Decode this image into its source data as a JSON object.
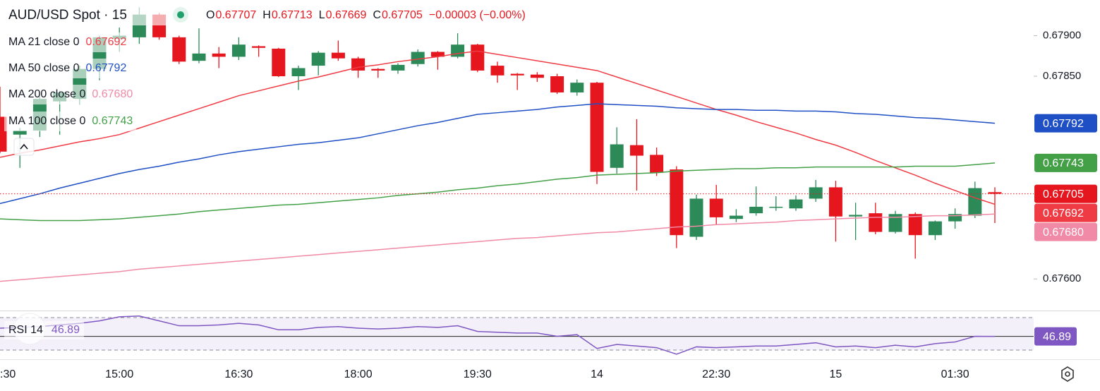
{
  "chart_data": [
    {
      "type": "candlestick",
      "title": "AUD/USD Spot · 15",
      "ohlc_labels": [
        "O",
        "H",
        "L",
        "C"
      ],
      "change": "−0.00003 (−0.00%)",
      "categories": [
        ":30",
        null,
        null,
        null,
        null,
        null,
        "15:00",
        null,
        null,
        null,
        null,
        null,
        "16:30",
        null,
        null,
        null,
        null,
        null,
        "18:00",
        null,
        null,
        null,
        null,
        null,
        "19:30",
        null,
        null,
        null,
        null,
        null,
        "14",
        null,
        null,
        null,
        null,
        null,
        "22:30",
        null,
        null,
        null,
        null,
        null,
        "15",
        null,
        null,
        null,
        null,
        null,
        "01:30",
        null,
        null
      ],
      "open": [
        0.678,
        0.67778,
        0.67783,
        0.67819,
        0.67822,
        0.67859,
        0.67896,
        0.67898,
        0.67926,
        0.67898,
        0.67869,
        0.67878,
        0.67874,
        0.67887,
        0.67884,
        0.6785,
        0.67863,
        0.67879,
        0.67872,
        0.67859,
        0.67857,
        0.67865,
        0.6788,
        0.67874,
        0.67889,
        0.67863,
        0.67853,
        0.67852,
        0.6785,
        0.6783,
        0.67842,
        0.67737,
        0.67765,
        0.67753,
        0.67735,
        0.67652,
        0.67699,
        0.67674,
        0.67681,
        0.67688,
        0.67687,
        0.67699,
        0.67713,
        0.67677,
        0.67681,
        0.67658,
        0.6768,
        0.67654,
        0.67671,
        0.67678,
        0.67707
      ],
      "high": [
        0.67837,
        0.67786,
        0.67825,
        0.67832,
        0.67863,
        0.679,
        0.6791,
        0.67935,
        0.67928,
        0.679,
        0.67909,
        0.67886,
        0.67898,
        0.67888,
        0.67885,
        0.67863,
        0.67881,
        0.67894,
        0.67874,
        0.6786,
        0.67866,
        0.67883,
        0.67881,
        0.67903,
        0.6789,
        0.67868,
        0.67854,
        0.67855,
        0.67853,
        0.67846,
        0.67843,
        0.67787,
        0.67797,
        0.67762,
        0.67739,
        0.67704,
        0.67716,
        0.67686,
        0.67714,
        0.67702,
        0.67703,
        0.67722,
        0.67721,
        0.67694,
        0.67694,
        0.67684,
        0.67682,
        0.67672,
        0.67687,
        0.6772,
        0.67713
      ],
      "low": [
        0.67755,
        0.67737,
        0.67775,
        0.67778,
        0.67815,
        0.67845,
        0.6788,
        0.6789,
        0.67895,
        0.67865,
        0.67866,
        0.6786,
        0.6787,
        0.67874,
        0.67849,
        0.67833,
        0.67851,
        0.67869,
        0.67848,
        0.67848,
        0.67853,
        0.67862,
        0.67858,
        0.67872,
        0.67855,
        0.67842,
        0.67833,
        0.67843,
        0.67828,
        0.67826,
        0.67717,
        0.6773,
        0.67709,
        0.67727,
        0.67638,
        0.67648,
        0.67667,
        0.6767,
        0.67678,
        0.67684,
        0.67684,
        0.67695,
        0.67646,
        0.67648,
        0.67655,
        0.67656,
        0.67625,
        0.67648,
        0.67662,
        0.67675,
        0.67669
      ],
      "close": [
        0.67757,
        0.67783,
        0.67822,
        0.6783,
        0.67859,
        0.67898,
        0.679,
        0.67926,
        0.67898,
        0.67868,
        0.67878,
        0.67874,
        0.67889,
        0.67885,
        0.6785,
        0.6786,
        0.67879,
        0.67872,
        0.67857,
        0.67857,
        0.67864,
        0.6788,
        0.67874,
        0.67889,
        0.67857,
        0.67851,
        0.67851,
        0.67848,
        0.6783,
        0.67842,
        0.67732,
        0.67766,
        0.67752,
        0.67731,
        0.67654,
        0.67699,
        0.67676,
        0.67678,
        0.67689,
        0.67689,
        0.67698,
        0.67713,
        0.67677,
        0.67679,
        0.67658,
        0.6768,
        0.67654,
        0.67671,
        0.6768,
        0.67712,
        0.67705
      ],
      "up_color": "#2b8a57",
      "down_color": "#e5161d",
      "series": [
        {
          "name": "MA 21 close 0",
          "color": "#ef3b44",
          "values": [
            0.6775,
            0.67755,
            0.67759,
            0.67764,
            0.67769,
            0.67773,
            0.67778,
            0.67786,
            0.67794,
            0.67802,
            0.6781,
            0.67818,
            0.67826,
            0.67832,
            0.67838,
            0.67844,
            0.67849,
            0.67855,
            0.67861,
            0.67864,
            0.67868,
            0.67871,
            0.67874,
            0.67878,
            0.67881,
            0.67877,
            0.67873,
            0.67869,
            0.67865,
            0.67861,
            0.67857,
            0.67849,
            0.67841,
            0.67833,
            0.67825,
            0.67817,
            0.67809,
            0.67802,
            0.67794,
            0.67787,
            0.6778,
            0.67772,
            0.67765,
            0.67756,
            0.67746,
            0.67737,
            0.67728,
            0.67718,
            0.67709,
            0.677,
            0.67692
          ]
        },
        {
          "name": "MA 50 close 0",
          "color": "#1f4fc4",
          "values": [
            0.67693,
            0.67699,
            0.67705,
            0.67712,
            0.67718,
            0.67724,
            0.6773,
            0.67735,
            0.67739,
            0.67744,
            0.67748,
            0.67753,
            0.67757,
            0.6776,
            0.67763,
            0.67766,
            0.67768,
            0.67771,
            0.67774,
            0.67779,
            0.67784,
            0.67789,
            0.67793,
            0.67798,
            0.67803,
            0.67805,
            0.67807,
            0.67809,
            0.67812,
            0.67814,
            0.67816,
            0.67815,
            0.67814,
            0.67813,
            0.67811,
            0.6781,
            0.67809,
            0.67809,
            0.67808,
            0.67808,
            0.67807,
            0.67807,
            0.67806,
            0.67804,
            0.67803,
            0.67801,
            0.67799,
            0.67798,
            0.67796,
            0.67794,
            0.67792
          ]
        },
        {
          "name": "MA 200 close 0",
          "color": "#f08aa6",
          "values": [
            0.67597,
            0.67599,
            0.67601,
            0.67603,
            0.67605,
            0.67607,
            0.67609,
            0.67612,
            0.67614,
            0.67616,
            0.67618,
            0.6762,
            0.67622,
            0.67624,
            0.67626,
            0.67628,
            0.6763,
            0.67632,
            0.67634,
            0.67636,
            0.67638,
            0.6764,
            0.67642,
            0.67644,
            0.67646,
            0.67648,
            0.6765,
            0.67651,
            0.67653,
            0.67655,
            0.67657,
            0.67658,
            0.6766,
            0.67662,
            0.67664,
            0.67665,
            0.67667,
            0.67668,
            0.67669,
            0.6767,
            0.67672,
            0.67673,
            0.67674,
            0.67675,
            0.67676,
            0.67676,
            0.67677,
            0.67678,
            0.67678,
            0.67679,
            0.6768
          ],
          "value_labels": [
            null,
            null,
            null,
            null,
            null,
            null,
            null,
            null,
            null,
            null,
            null,
            null,
            null,
            null,
            null,
            null,
            null,
            null,
            null,
            null,
            null,
            null,
            null,
            null,
            null,
            null,
            null,
            null,
            null,
            null,
            null,
            null,
            null,
            null,
            null,
            null,
            null,
            null,
            null,
            null,
            null,
            null,
            null,
            null,
            null,
            null,
            null,
            null,
            null,
            null,
            "0.67680"
          ]
        },
        {
          "name": "MA 100 close 0",
          "color": "#43a047",
          "values": [
            0.67674,
            0.67673,
            0.67672,
            0.67672,
            0.67672,
            0.67673,
            0.67674,
            0.67676,
            0.67678,
            0.6768,
            0.67683,
            0.67685,
            0.67687,
            0.67689,
            0.67691,
            0.67692,
            0.67694,
            0.67696,
            0.67698,
            0.677,
            0.67703,
            0.67705,
            0.67707,
            0.6771,
            0.67712,
            0.67715,
            0.67717,
            0.6772,
            0.67723,
            0.67725,
            0.67728,
            0.67729,
            0.6773,
            0.67731,
            0.67733,
            0.67734,
            0.67735,
            0.67736,
            0.67736,
            0.67737,
            0.67737,
            0.67738,
            0.67738,
            0.67738,
            0.67738,
            0.67738,
            0.67739,
            0.67739,
            0.67739,
            0.67741,
            0.67743
          ]
        }
      ],
      "ylim": [
        0.67561,
        0.67944
      ],
      "yticks": [
        {
          "value": 0.679,
          "label": "0.67900"
        },
        {
          "value": 0.6785,
          "label": "0.67850"
        },
        {
          "value": 0.676,
          "label": "0.67600"
        }
      ],
      "grid": false
    },
    {
      "type": "line",
      "series": [
        {
          "name": "RSI 14",
          "color": "#7e57c2",
          "values": [
            57,
            58,
            59,
            61,
            63,
            66,
            71,
            72,
            66,
            60,
            60,
            61,
            63,
            61,
            55,
            55,
            58,
            59,
            57,
            56,
            57,
            59,
            58,
            60,
            53,
            52,
            51,
            51,
            47,
            49,
            32,
            37,
            35,
            33,
            25,
            34,
            33,
            34,
            35,
            35,
            37,
            39,
            34,
            35,
            33,
            36,
            34,
            38,
            40,
            47,
            46.89
          ]
        }
      ],
      "bands": [
        30,
        70
      ],
      "ylim": [
        19.6,
        77
      ]
    }
  ]
}
